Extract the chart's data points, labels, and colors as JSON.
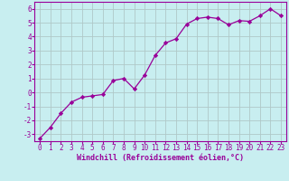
{
  "x": [
    0,
    1,
    2,
    3,
    4,
    5,
    6,
    7,
    8,
    9,
    10,
    11,
    12,
    13,
    14,
    15,
    16,
    17,
    18,
    19,
    20,
    21,
    22,
    23
  ],
  "y": [
    -3.3,
    -2.5,
    -1.5,
    -0.7,
    -0.35,
    -0.25,
    -0.15,
    0.85,
    1.0,
    0.25,
    1.25,
    2.65,
    3.55,
    3.85,
    4.9,
    5.3,
    5.4,
    5.3,
    4.85,
    5.15,
    5.1,
    5.5,
    6.0,
    5.5
  ],
  "line_color": "#990099",
  "marker": "D",
  "marker_size": 2.2,
  "bg_color": "#c8eef0",
  "grid_color": "#b0c8c8",
  "xlim": [
    -0.5,
    23.5
  ],
  "ylim": [
    -3.5,
    6.5
  ],
  "yticks": [
    -3,
    -2,
    -1,
    0,
    1,
    2,
    3,
    4,
    5,
    6
  ],
  "xticks": [
    0,
    1,
    2,
    3,
    4,
    5,
    6,
    7,
    8,
    9,
    10,
    11,
    12,
    13,
    14,
    15,
    16,
    17,
    18,
    19,
    20,
    21,
    22,
    23
  ],
  "xlabel": "Windchill (Refroidissement éolien,°C)",
  "xlabel_color": "#990099",
  "tick_color": "#990099",
  "label_fontsize": 6.0,
  "tick_fontsize": 5.5,
  "linewidth": 0.9
}
